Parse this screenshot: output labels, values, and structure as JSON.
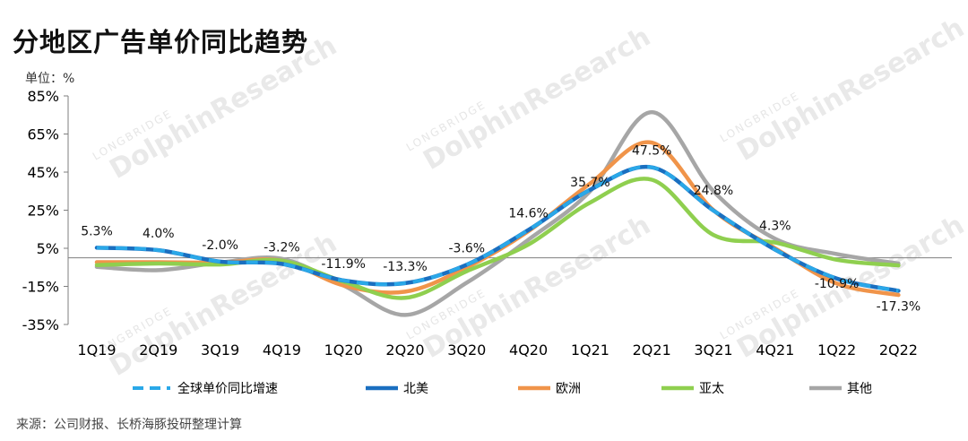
{
  "title": "分地区广告单价同比趋势",
  "unit_label": "单位：%",
  "source": "来源：公司财报、长桥海豚投研整理计算",
  "watermark": {
    "main": "DolphinResearch",
    "sub": "LONGBRIDGE"
  },
  "chart_data": {
    "type": "line",
    "categories": [
      "1Q19",
      "2Q19",
      "3Q19",
      "4Q19",
      "1Q20",
      "2Q20",
      "3Q20",
      "4Q20",
      "1Q21",
      "2Q21",
      "3Q21",
      "4Q21",
      "1Q22",
      "2Q22"
    ],
    "ylim": [
      -35,
      85
    ],
    "yticks": [
      "85%",
      "65%",
      "45%",
      "25%",
      "5%",
      "-15%",
      "-35%"
    ],
    "ytick_values": [
      85,
      65,
      45,
      25,
      5,
      -15,
      -35
    ],
    "grid": false,
    "legend_position": "bottom",
    "series": [
      {
        "name": "全球单价同比增速",
        "color": "#2aa8e8",
        "dashed": true,
        "values": [
          5.3,
          4.0,
          -2.0,
          -3.2,
          -11.9,
          -13.3,
          -3.6,
          14.6,
          35.7,
          47.5,
          24.8,
          4.3,
          -10.9,
          -17.3
        ]
      },
      {
        "name": "北美",
        "color": "#1a6fc0",
        "dashed": false,
        "values": [
          5.3,
          4.0,
          -2.0,
          -3.2,
          -11.9,
          -13.3,
          -3.6,
          14.6,
          35.7,
          47.5,
          24.8,
          4.3,
          -10.9,
          -17.3
        ]
      },
      {
        "name": "欧洲",
        "color": "#f0944a",
        "dashed": false,
        "values": [
          -2.3,
          -2.3,
          -2.5,
          -1.5,
          -14.5,
          -17.8,
          -5.0,
          14.0,
          39.0,
          60.5,
          25.0,
          5.0,
          -13.5,
          -19.5
        ]
      },
      {
        "name": "亚太",
        "color": "#8fcf4f",
        "dashed": false,
        "values": [
          -3.8,
          -3.0,
          -3.5,
          -1.5,
          -12.5,
          -21.0,
          -7.0,
          7.0,
          29.0,
          41.0,
          12.0,
          8.0,
          -1.0,
          -4.0
        ]
      },
      {
        "name": "其他",
        "color": "#a6a6a6",
        "dashed": false,
        "values": [
          -4.8,
          -6.5,
          -2.5,
          -0.5,
          -14.5,
          -30.0,
          -13.0,
          9.5,
          35.0,
          76.5,
          35.0,
          10.0,
          2.0,
          -3.0
        ]
      }
    ],
    "data_labels": [
      "5.3%",
      "4.0%",
      "-2.0%",
      "-3.2%",
      "-11.9%",
      "-13.3%",
      "-3.6%",
      "14.6%",
      "35.7%",
      "47.5%",
      "24.8%",
      "4.3%",
      "-10.9%",
      "-17.3%"
    ]
  }
}
